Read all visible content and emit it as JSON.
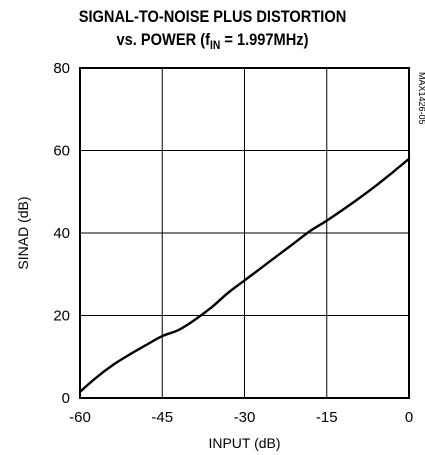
{
  "chart_data": {
    "type": "line",
    "title_line1": "SIGNAL-TO-NOISE PLUS DISTORTION",
    "title_line2_prefix": "vs. POWER (f",
    "title_line2_sub": "IN",
    "title_line2_suffix": " = 1.997MHz)",
    "figure_code": "MAX1426-05",
    "xlabel": "INPUT (dB)",
    "ylabel": "SINAD (dB)",
    "xlim": [
      -60,
      0
    ],
    "ylim": [
      0,
      80
    ],
    "xticks": [
      "-60",
      "-45",
      "-30",
      "-15",
      "0"
    ],
    "yticks": [
      "0",
      "20",
      "40",
      "60",
      "80"
    ],
    "grid": true,
    "series": [
      {
        "x": [
          -60,
          -57,
          -54,
          -51,
          -48,
          -45,
          -42,
          -39,
          -36,
          -33,
          -30,
          -27,
          -24,
          -21,
          -18,
          -15,
          -12,
          -9,
          -6,
          -3,
          0
        ],
        "y": [
          1.5,
          5,
          8,
          10.5,
          12.8,
          15,
          16.5,
          19,
          22,
          25.5,
          28.5,
          31.5,
          34.5,
          37.5,
          40.5,
          43,
          45.7,
          48.5,
          51.5,
          54.7,
          58
        ]
      }
    ]
  }
}
